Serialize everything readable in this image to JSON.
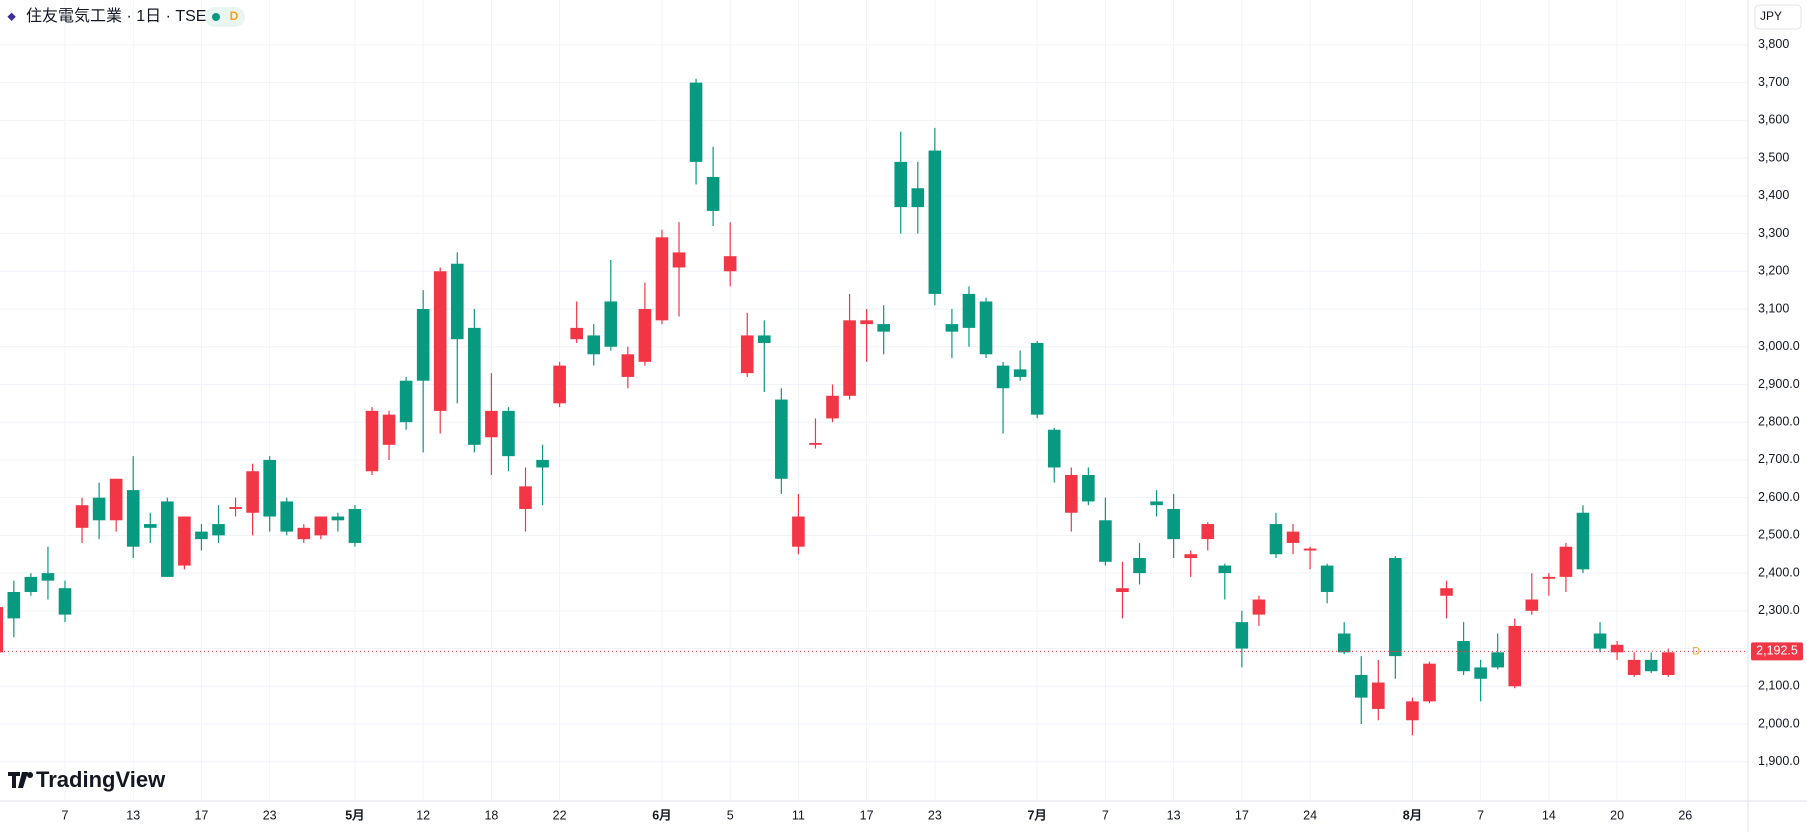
{
  "chart_data": {
    "type": "candlestick",
    "title": "住友電気工業 · 1日 · TSE",
    "interval_badge": "D",
    "currency": "JPY",
    "logo": "TradingView",
    "up_color": "#089981",
    "down_color": "#f23645",
    "categories": [
      null,
      null,
      null,
      null,
      "7",
      null,
      null,
      null,
      "13",
      null,
      null,
      null,
      "17",
      null,
      null,
      null,
      "23",
      null,
      null,
      null,
      null,
      "5月",
      null,
      null,
      null,
      "12",
      null,
      null,
      null,
      "18",
      null,
      null,
      null,
      "22",
      null,
      null,
      null,
      null,
      null,
      "6月",
      null,
      null,
      null,
      "5",
      null,
      null,
      null,
      "11",
      null,
      null,
      null,
      "17",
      null,
      null,
      null,
      "23",
      null,
      null,
      null,
      null,
      null,
      "7月",
      null,
      null,
      null,
      "7",
      null,
      null,
      null,
      "13",
      null,
      null,
      null,
      "17",
      null,
      null,
      null,
      "24",
      null,
      null,
      null,
      null,
      null,
      "8月",
      null,
      null,
      null,
      "7",
      null,
      null,
      null,
      "14",
      null,
      null,
      null,
      "20",
      null,
      null,
      null,
      "26"
    ],
    "open": [
      2310,
      2280,
      2350,
      2380,
      2290,
      2580,
      2540,
      2650,
      2470,
      2520,
      2390,
      2550,
      2490,
      2500,
      2575,
      2670,
      2550,
      2510,
      2520,
      2550,
      2540,
      2480,
      2830,
      2820,
      2800,
      2910,
      3200,
      3020,
      2740,
      2830,
      2710,
      2630,
      2680,
      2950,
      3050,
      2980,
      3000,
      2980,
      3100,
      3290,
      3250,
      3490,
      3360,
      3240,
      3030,
      3010,
      2650,
      2550,
      2745,
      2870,
      3070,
      3070,
      3040,
      3370,
      3370,
      3140,
      3040,
      3050,
      2980,
      2890,
      2920,
      2820,
      2680,
      2660,
      2590,
      2430,
      2360,
      2400,
      2580,
      2490,
      2450,
      2530,
      2400,
      2200,
      2330,
      2450,
      2510,
      2465,
      2350,
      2190,
      2070,
      2110,
      2180,
      2060,
      2160,
      2360,
      2140,
      2120,
      2150,
      2260,
      2330,
      2390,
      2470,
      2410,
      2200,
      2210,
      2170,
      2140,
      2190,
      null
    ],
    "high": [
      2320,
      2380,
      2400,
      2470,
      2380,
      2600,
      2640,
      2650,
      2710,
      2560,
      2600,
      2550,
      2530,
      2580,
      2600,
      2690,
      2710,
      2600,
      2530,
      2550,
      2560,
      2580,
      2840,
      2830,
      2920,
      3150,
      3210,
      3250,
      3100,
      2930,
      2840,
      2680,
      2740,
      2960,
      3120,
      3060,
      3230,
      3000,
      3170,
      3310,
      3330,
      3710,
      3530,
      3330,
      3090,
      3070,
      2890,
      2610,
      2810,
      2900,
      3140,
      3100,
      3110,
      3570,
      3490,
      3580,
      3100,
      3160,
      3130,
      2960,
      2990,
      3015,
      2785,
      2680,
      2680,
      2600,
      2430,
      2480,
      2620,
      2610,
      2460,
      2535,
      2425,
      2300,
      2340,
      2560,
      2530,
      2470,
      2425,
      2270,
      2180,
      2170,
      2445,
      2070,
      2165,
      2380,
      2270,
      2170,
      2240,
      2280,
      2400,
      2400,
      2480,
      2580,
      2270,
      2220,
      2190,
      2190,
      2200,
      null
    ],
    "low": [
      2180,
      2230,
      2340,
      2330,
      2270,
      2480,
      2490,
      2510,
      2440,
      2480,
      2390,
      2410,
      2460,
      2480,
      2550,
      2500,
      2510,
      2500,
      2480,
      2490,
      2510,
      2470,
      2660,
      2700,
      2780,
      2720,
      2770,
      2850,
      2720,
      2660,
      2670,
      2510,
      2580,
      2840,
      3010,
      2950,
      2990,
      2890,
      2950,
      3060,
      3080,
      3430,
      3320,
      3160,
      2920,
      2880,
      2610,
      2450,
      2730,
      2800,
      2860,
      2960,
      2980,
      3300,
      3300,
      3110,
      2970,
      3000,
      2970,
      2770,
      2910,
      2810,
      2640,
      2510,
      2580,
      2420,
      2280,
      2370,
      2550,
      2440,
      2390,
      2460,
      2330,
      2150,
      2260,
      2440,
      2450,
      2410,
      2320,
      2185,
      2000,
      2010,
      2120,
      1970,
      2055,
      2280,
      2130,
      2060,
      2145,
      2095,
      2290,
      2340,
      2350,
      2400,
      2190,
      2170,
      2125,
      2135,
      2125,
      null
    ],
    "close": [
      2190,
      2350,
      2390,
      2400,
      2360,
      2520,
      2600,
      2540,
      2620,
      2530,
      2590,
      2420,
      2510,
      2530,
      2570,
      2560,
      2700,
      2590,
      2490,
      2500,
      2550,
      2570,
      2670,
      2740,
      2910,
      3100,
      2830,
      3220,
      3050,
      2760,
      2830,
      2570,
      2700,
      2850,
      3020,
      3030,
      3120,
      2920,
      2960,
      3070,
      3210,
      3700,
      3450,
      3200,
      2930,
      3030,
      2860,
      2470,
      2740,
      2810,
      2870,
      3060,
      3060,
      3490,
      3420,
      3520,
      3060,
      3140,
      3120,
      2950,
      2940,
      3010,
      2780,
      2560,
      2660,
      2540,
      2350,
      2440,
      2590,
      2570,
      2440,
      2490,
      2420,
      2270,
      2290,
      2530,
      2480,
      2460,
      2420,
      2240,
      2130,
      2040,
      2440,
      2010,
      2060,
      2340,
      2220,
      2150,
      2190,
      2100,
      2300,
      2385,
      2390,
      2560,
      2240,
      2190,
      2130,
      2170,
      2130,
      null
    ],
    "last_price": 2192.5,
    "last_price_label": "2,192.5",
    "ylim": [
      1796,
      3919
    ],
    "yticks": [
      {
        "value": 1900,
        "label": "1,900.0"
      },
      {
        "value": 2000,
        "label": "2,000.0"
      },
      {
        "value": 2100,
        "label": "2,100.0"
      },
      {
        "value": 2200,
        "label": "2,200.0"
      },
      {
        "value": 2300,
        "label": "2,300.0"
      },
      {
        "value": 2400,
        "label": "2,400.0"
      },
      {
        "value": 2500,
        "label": "2,500.0"
      },
      {
        "value": 2600,
        "label": "2,600.0"
      },
      {
        "value": 2700,
        "label": "2,700.0"
      },
      {
        "value": 2800,
        "label": "2,800.0"
      },
      {
        "value": 2900,
        "label": "2,900.0"
      },
      {
        "value": 3000,
        "label": "3,000.0"
      },
      {
        "value": 3100,
        "label": "3,100"
      },
      {
        "value": 3200,
        "label": "3,200"
      },
      {
        "value": 3300,
        "label": "3,300"
      },
      {
        "value": 3400,
        "label": "3,400"
      },
      {
        "value": 3500,
        "label": "3,500"
      },
      {
        "value": 3600,
        "label": "3,600"
      },
      {
        "value": 3700,
        "label": "3,700"
      },
      {
        "value": 3800,
        "label": "3,800"
      }
    ],
    "grid": true
  }
}
